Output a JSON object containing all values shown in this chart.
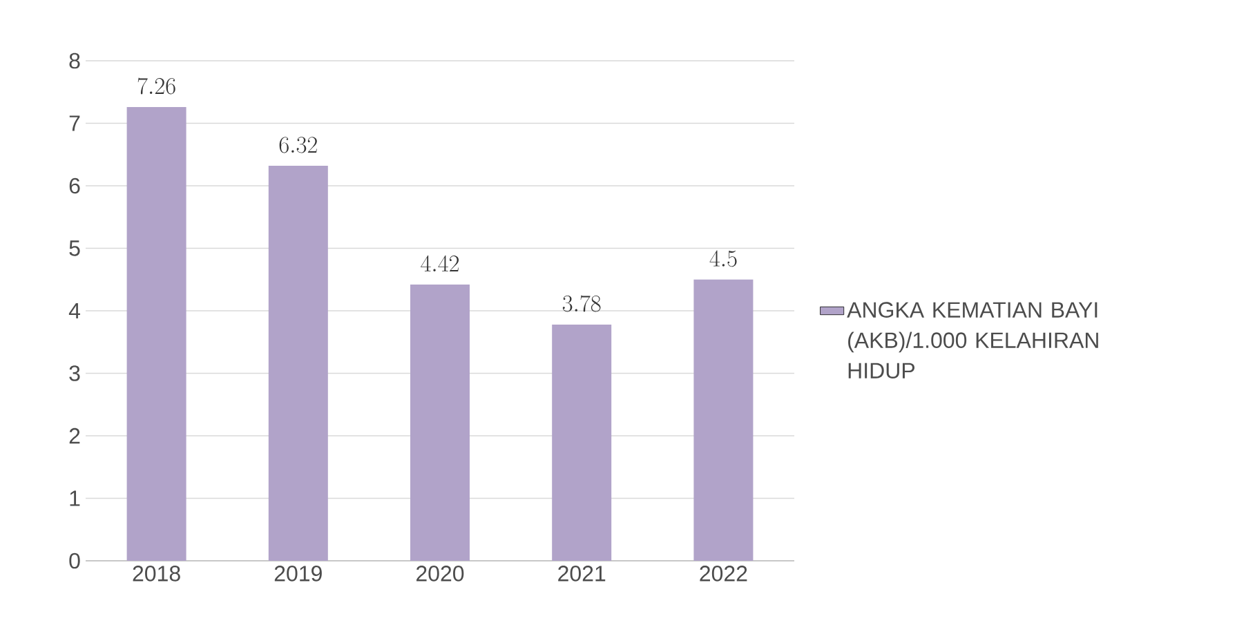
{
  "chart_data": {
    "type": "bar",
    "categories": [
      "2018",
      "2019",
      "2020",
      "2021",
      "2022"
    ],
    "series": [
      {
        "name": "ANGKA KEMATIAN BAYI (AKB)/1.000 KELAHIRAN HIDUP",
        "color": "#b1a3c9",
        "values": [
          7.26,
          6.32,
          4.42,
          3.78,
          4.5
        ]
      }
    ],
    "ylim": [
      0,
      8
    ],
    "yticks": [
      0,
      1,
      2,
      3,
      4,
      5,
      6,
      7,
      8
    ],
    "grid": "y",
    "legend": "right",
    "data_labels": true
  }
}
